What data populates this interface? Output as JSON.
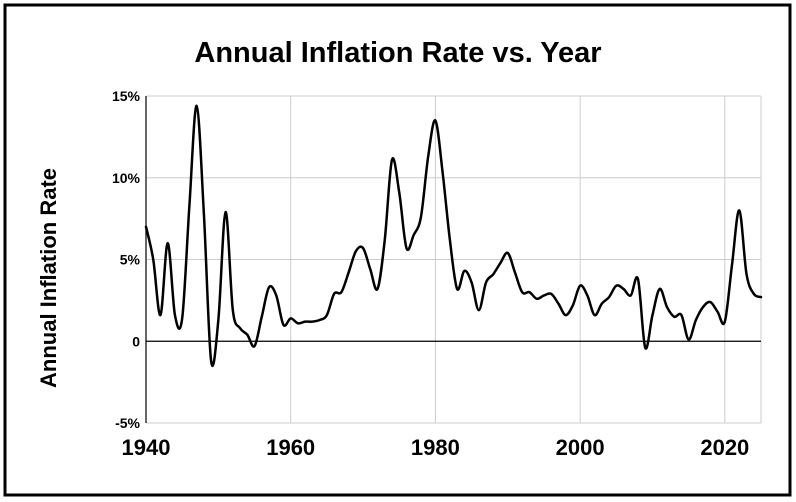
{
  "chart_data": {
    "type": "line",
    "title": "Annual Inflation Rate vs. Year",
    "xlabel": "",
    "ylabel": "Annual Inflation Rate",
    "xlim": [
      1940,
      2025
    ],
    "ylim": [
      -5,
      15
    ],
    "x_ticks": [
      1940,
      1960,
      1980,
      2000,
      2020
    ],
    "y_ticks": [
      -5,
      0,
      5,
      10,
      15
    ],
    "y_tick_labels": [
      "-5%",
      "0",
      "5%",
      "10%",
      "15%"
    ],
    "grid": true,
    "legend": "none",
    "line_color": "#000000",
    "grid_color": "#cccccc",
    "series": [
      {
        "x": [
          1940,
          1941,
          1942,
          1943,
          1944,
          1945,
          1946,
          1947,
          1948,
          1949,
          1950,
          1951,
          1952,
          1953,
          1954,
          1955,
          1956,
          1957,
          1958,
          1959,
          1960,
          1961,
          1962,
          1963,
          1964,
          1965,
          1966,
          1967,
          1968,
          1969,
          1970,
          1971,
          1972,
          1973,
          1974,
          1975,
          1976,
          1977,
          1978,
          1979,
          1980,
          1981,
          1982,
          1983,
          1984,
          1985,
          1986,
          1987,
          1988,
          1989,
          1990,
          1991,
          1992,
          1993,
          1994,
          1995,
          1996,
          1997,
          1998,
          1999,
          2000,
          2001,
          2002,
          2003,
          2004,
          2005,
          2006,
          2007,
          2008,
          2009,
          2010,
          2011,
          2012,
          2013,
          2014,
          2015,
          2016,
          2017,
          2018,
          2019,
          2020,
          2021,
          2022,
          2023,
          2024,
          2025
        ],
        "y": [
          7.0,
          5.0,
          1.6,
          6.0,
          1.6,
          1.4,
          8.3,
          14.4,
          7.8,
          -1.2,
          1.3,
          7.9,
          1.9,
          0.8,
          0.4,
          -0.3,
          1.5,
          3.3,
          2.8,
          1.0,
          1.4,
          1.1,
          1.2,
          1.2,
          1.3,
          1.6,
          2.9,
          3.0,
          4.2,
          5.5,
          5.7,
          4.4,
          3.2,
          6.2,
          11.1,
          9.1,
          5.7,
          6.5,
          7.6,
          11.3,
          13.5,
          10.3,
          6.2,
          3.2,
          4.3,
          3.6,
          1.9,
          3.6,
          4.1,
          4.8,
          5.4,
          4.2,
          3.0,
          3.0,
          2.6,
          2.8,
          2.9,
          2.3,
          1.6,
          2.2,
          3.4,
          2.8,
          1.6,
          2.3,
          2.7,
          3.4,
          3.2,
          2.8,
          3.8,
          -0.4,
          1.6,
          3.2,
          2.1,
          1.5,
          1.6,
          0.1,
          1.3,
          2.1,
          2.4,
          1.8,
          1.2,
          4.7,
          8.0,
          4.1,
          2.9,
          2.7
        ]
      }
    ]
  }
}
